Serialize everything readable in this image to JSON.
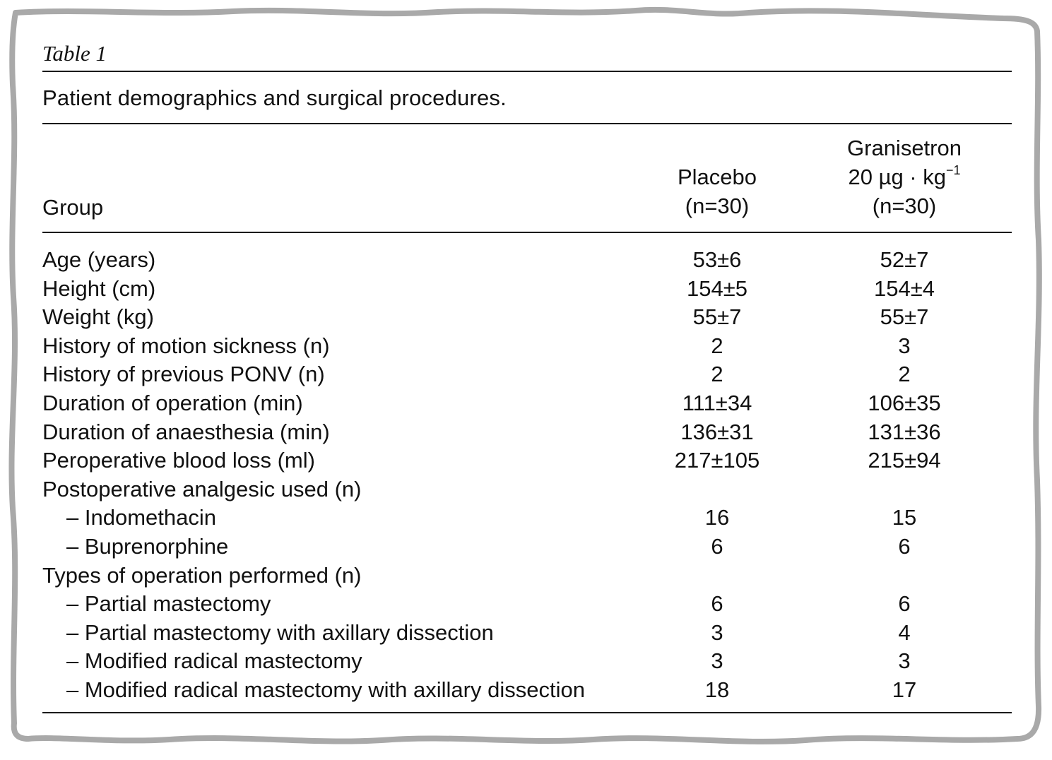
{
  "table": {
    "label": "Table 1",
    "caption": "Patient demographics and surgical procedures.",
    "header": {
      "group": "Group",
      "placebo": {
        "line1": "Placebo",
        "line2": "(n=30)"
      },
      "granisetron": {
        "line1": "Granisetron",
        "line2": "20 µg · kg",
        "line2_sup": "−1",
        "line3": "(n=30)"
      }
    },
    "rows": [
      {
        "label": "Age (years)",
        "placebo": "53±6",
        "granisetron": "52±7"
      },
      {
        "label": "Height (cm)",
        "placebo": "154±5",
        "granisetron": "154±4"
      },
      {
        "label": "Weight (kg)",
        "placebo": "55±7",
        "granisetron": "55±7"
      },
      {
        "label": "History of motion sickness (n)",
        "placebo": "2",
        "granisetron": "3"
      },
      {
        "label": "History of previous PONV (n)",
        "placebo": "2",
        "granisetron": "2"
      },
      {
        "label": "Duration of operation (min)",
        "placebo": "111±34",
        "granisetron": "106±35"
      },
      {
        "label": "Duration of anaesthesia (min)",
        "placebo": "136±31",
        "granisetron": "131±36"
      },
      {
        "label": "Peroperative blood loss (ml)",
        "placebo": "217±105",
        "granisetron": "215±94"
      },
      {
        "label": "Postoperative analgesic used (n)",
        "placebo": "",
        "granisetron": ""
      },
      {
        "label": "– Indomethacin",
        "placebo": "16",
        "granisetron": "15"
      },
      {
        "label": "– Buprenorphine",
        "placebo": "6",
        "granisetron": "6"
      },
      {
        "label": "Types of operation performed (n)",
        "placebo": "",
        "granisetron": ""
      },
      {
        "label": "– Partial mastectomy",
        "placebo": "6",
        "granisetron": "6"
      },
      {
        "label": "– Partial mastectomy with axillary dissection",
        "placebo": "3",
        "granisetron": "4"
      },
      {
        "label": "– Modified radical mastectomy",
        "placebo": "3",
        "granisetron": "3"
      },
      {
        "label": "– Modified radical mastectomy with axillary dissection",
        "placebo": "18",
        "granisetron": "17"
      }
    ]
  },
  "colors": {
    "frame": "#a9a9a9",
    "text": "#111111",
    "rule": "#1a1a1a"
  }
}
